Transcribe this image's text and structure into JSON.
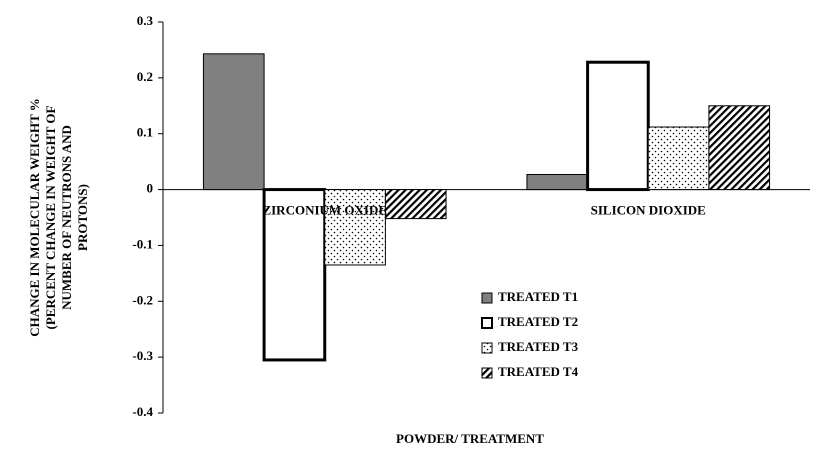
{
  "chart_data": {
    "type": "bar",
    "x_label": "POWDER/ TREATMENT",
    "y_label": [
      "CHANGE IN MOLECULAR WEIGHT %",
      "(PERCENT CHANGE IN WEIGHT OF",
      "NUMBER OF NEUTRONS AND",
      "PROTONS)"
    ],
    "categories": [
      "ZIRCONIUM OXIDE",
      "SILICON DIOXIDE"
    ],
    "series": [
      {
        "name": "TREATED T1",
        "color": "#808080",
        "pattern": "solid",
        "values": [
          0.243,
          0.027
        ]
      },
      {
        "name": "TREATED T2",
        "color": "#ffffff",
        "pattern": "thick-outline",
        "values": [
          -0.305,
          0.228
        ]
      },
      {
        "name": "TREATED T3",
        "color": "#ffffff",
        "pattern": "dots",
        "values": [
          -0.135,
          0.112
        ]
      },
      {
        "name": "TREATED T4",
        "color": "#ffffff",
        "pattern": "diagonal",
        "values": [
          -0.052,
          0.15
        ]
      }
    ],
    "ylim": [
      -0.4,
      0.3
    ],
    "yticks": [
      -0.4,
      -0.3,
      -0.2,
      -0.1,
      0,
      0.1,
      0.2,
      0.3
    ],
    "grid": false,
    "legend": "center"
  }
}
